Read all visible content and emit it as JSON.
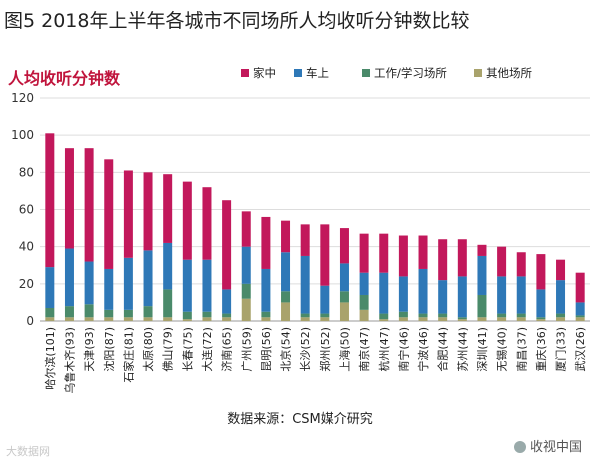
{
  "header": {
    "title": "图5 2018年上半年各城市不同场所人均收听分钟数比较",
    "subtitle": "人均收听分钟数"
  },
  "footer": {
    "source": "数据来源：CSM媒介研究",
    "watermark_left": "大数据网",
    "watermark_right": "收视中国"
  },
  "colors": {
    "家中": "#c2185b",
    "车上": "#2e78b7",
    "工作/学习场所": "#4a8a6a",
    "其他场所": "#a9a36c"
  },
  "chart_data": {
    "type": "bar",
    "stacked": true,
    "ylim": [
      0,
      120
    ],
    "yticks": [
      0,
      20,
      40,
      60,
      80,
      100,
      120
    ],
    "legend_position": "top",
    "categories": [
      "哈尔滨(101)",
      "乌鲁木齐(93)",
      "天津(93)",
      "沈阳(87)",
      "石家庄(81)",
      "太原(80)",
      "佛山(79)",
      "长春(75)",
      "大连(72)",
      "济南(65)",
      "广州(59)",
      "昆明(56)",
      "北京(54)",
      "长沙(52)",
      "郑州(52)",
      "上海(50)",
      "南京(47)",
      "杭州(47)",
      "南宁(46)",
      "宁波(46)",
      "合肥(44)",
      "苏州(44)",
      "深圳(41)",
      "无锡(40)",
      "南昌(37)",
      "重庆(36)",
      "厦门(33)",
      "武汉(26)"
    ],
    "series": [
      {
        "name": "其他场所",
        "values": [
          2,
          2,
          2,
          2,
          2,
          2,
          2,
          1,
          2,
          2,
          12,
          2,
          10,
          2,
          2,
          10,
          6,
          1,
          2,
          2,
          2,
          1,
          2,
          2,
          2,
          1,
          2,
          2
        ]
      },
      {
        "name": "工作/学习场所",
        "values": [
          5,
          6,
          7,
          4,
          4,
          6,
          15,
          4,
          3,
          2,
          8,
          3,
          6,
          2,
          2,
          6,
          8,
          3,
          3,
          2,
          2,
          1,
          12,
          2,
          2,
          1,
          2,
          1
        ]
      },
      {
        "name": "车上",
        "values": [
          22,
          31,
          23,
          22,
          28,
          30,
          25,
          28,
          28,
          13,
          20,
          23,
          21,
          31,
          15,
          15,
          12,
          22,
          19,
          24,
          18,
          22,
          21,
          20,
          20,
          15,
          18,
          7
        ]
      },
      {
        "name": "家中",
        "values": [
          72,
          54,
          61,
          59,
          47,
          42,
          37,
          42,
          39,
          48,
          19,
          28,
          17,
          17,
          33,
          19,
          21,
          21,
          22,
          18,
          22,
          20,
          6,
          16,
          13,
          19,
          11,
          16
        ]
      }
    ]
  }
}
